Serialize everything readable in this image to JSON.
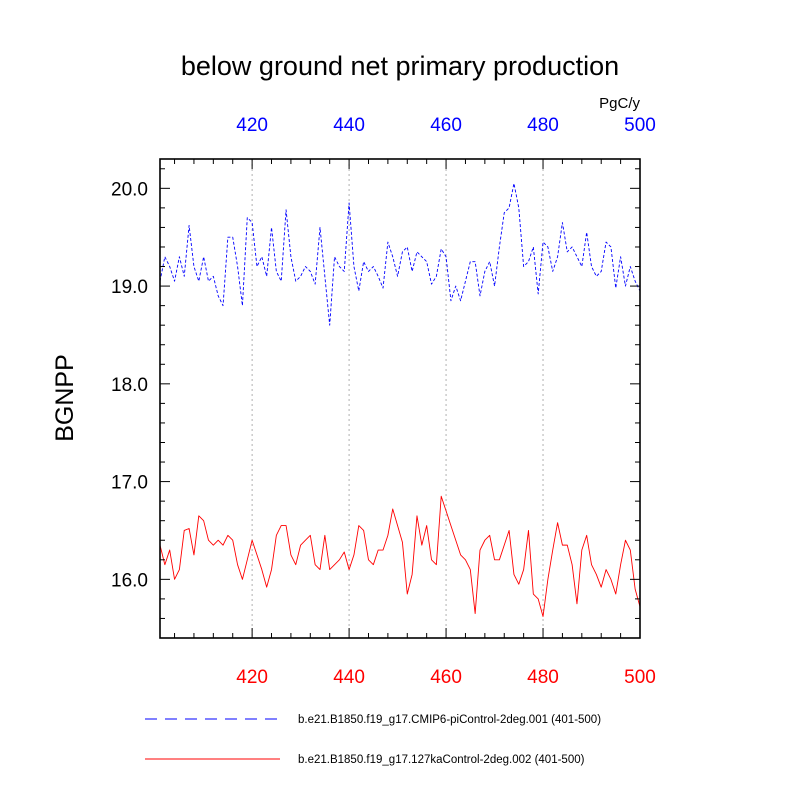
{
  "chart_data": {
    "type": "line",
    "title": "below ground net primary production",
    "units": "PgC/y",
    "ylabel": "BGNPP",
    "xlim": [
      401,
      500
    ],
    "ylim": [
      15.4,
      20.3
    ],
    "yticks": [
      16.0,
      17.0,
      18.0,
      19.0,
      20.0
    ],
    "ytick_labels": [
      "16.0",
      "17.0",
      "18.0",
      "19.0",
      "20.0"
    ],
    "xticks": [
      420,
      440,
      460,
      480,
      500
    ],
    "top_axis_labels": [
      "420",
      "440",
      "460",
      "480",
      "500"
    ],
    "bottom_axis_labels": [
      "420",
      "440",
      "460",
      "480",
      "500"
    ],
    "top_axis_color": "#0000ff",
    "bottom_axis_color": "#ff0000",
    "grid": "dotted vertical at x ticks",
    "series": [
      {
        "name": "b.e21.B1850.f19_g17.CMIP6-piControl-2deg.001 (401-500)",
        "color": "#0000ff",
        "style": "dashed",
        "x_start": 401,
        "values": [
          19.05,
          19.3,
          19.2,
          19.05,
          19.3,
          19.1,
          19.62,
          19.2,
          19.05,
          19.3,
          19.05,
          19.1,
          18.9,
          18.8,
          19.5,
          19.5,
          19.2,
          18.8,
          19.7,
          19.65,
          19.2,
          19.3,
          19.1,
          19.6,
          19.15,
          19.05,
          19.78,
          19.3,
          19.05,
          19.1,
          19.2,
          19.15,
          19.02,
          19.6,
          19.1,
          18.6,
          19.3,
          19.2,
          19.15,
          19.85,
          19.2,
          18.95,
          19.25,
          19.15,
          19.2,
          19.1,
          18.98,
          19.45,
          19.3,
          19.1,
          19.35,
          19.4,
          19.15,
          19.35,
          19.3,
          19.25,
          19.02,
          19.1,
          19.38,
          19.3,
          18.85,
          19.0,
          18.85,
          19.05,
          19.25,
          19.25,
          18.9,
          19.15,
          19.25,
          19.0,
          19.4,
          19.75,
          19.8,
          20.05,
          19.8,
          19.2,
          19.25,
          19.4,
          18.92,
          19.45,
          19.4,
          19.15,
          19.3,
          19.65,
          19.35,
          19.4,
          19.3,
          19.2,
          19.55,
          19.2,
          19.1,
          19.15,
          19.45,
          19.4,
          18.98,
          19.3,
          19.0,
          19.2,
          19.05,
          18.95
        ]
      },
      {
        "name": "b.e21.B1850.f19_g17.127kaControl-2deg.002 (401-500)",
        "color": "#ff0000",
        "style": "solid",
        "x_start": 401,
        "values": [
          16.35,
          16.15,
          16.3,
          16.0,
          16.1,
          16.5,
          16.52,
          16.25,
          16.65,
          16.6,
          16.4,
          16.35,
          16.4,
          16.35,
          16.45,
          16.4,
          16.15,
          16.0,
          16.2,
          16.4,
          16.25,
          16.1,
          15.92,
          16.1,
          16.45,
          16.55,
          16.55,
          16.25,
          16.15,
          16.35,
          16.4,
          16.45,
          16.15,
          16.1,
          16.45,
          16.1,
          16.15,
          16.2,
          16.28,
          16.1,
          16.25,
          16.55,
          16.5,
          16.2,
          16.15,
          16.3,
          16.3,
          16.45,
          16.72,
          16.55,
          16.38,
          15.85,
          16.05,
          16.65,
          16.35,
          16.55,
          16.2,
          16.15,
          16.85,
          16.7,
          16.55,
          16.4,
          16.25,
          16.2,
          16.1,
          15.65,
          16.3,
          16.4,
          16.45,
          16.2,
          16.2,
          16.35,
          16.5,
          16.05,
          15.95,
          16.1,
          16.5,
          15.85,
          15.8,
          15.62,
          16.0,
          16.3,
          16.58,
          16.35,
          16.35,
          16.15,
          15.75,
          16.3,
          16.45,
          16.15,
          16.05,
          15.92,
          16.1,
          16.0,
          15.85,
          16.15,
          16.4,
          16.3,
          15.9,
          15.72
        ]
      }
    ]
  }
}
